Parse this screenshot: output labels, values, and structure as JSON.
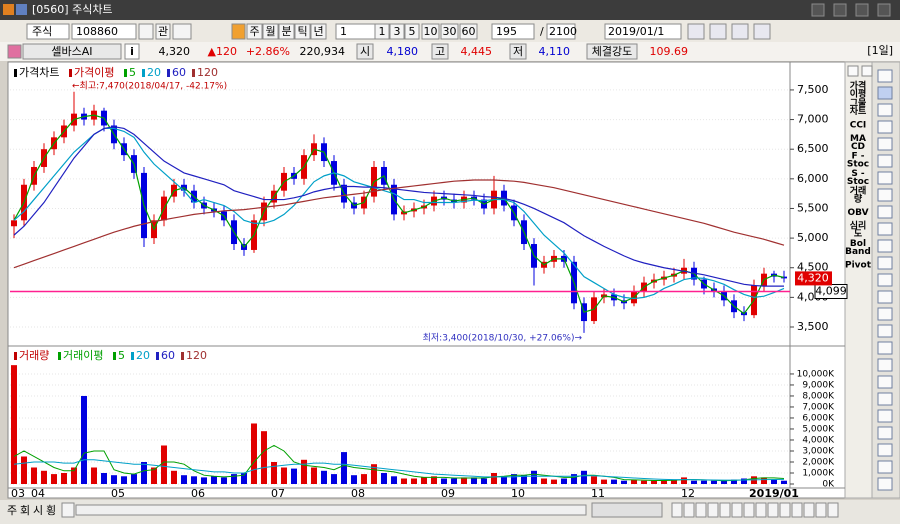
{
  "window": {
    "title": "[0560] 주식차트"
  },
  "toolbar": {
    "market": "주식",
    "code": "108860",
    "watch": "관",
    "periods": [
      "주",
      "월",
      "분",
      "틱",
      "년"
    ],
    "interval": "1",
    "minutes": [
      "1",
      "3",
      "5",
      "10",
      "30",
      "60"
    ],
    "count": "195",
    "slash": "/",
    "total": "2100",
    "date": "2019/01/1"
  },
  "quote": {
    "name": "셀바스AI",
    "info": "i",
    "price": "4,320",
    "change": "▲120",
    "rate": "+2.86%",
    "volume": "220,934",
    "open_label": "시",
    "open": "4,180",
    "high_label": "고",
    "high": "4,445",
    "low_label": "저",
    "low": "4,110",
    "strength_label": "체결강도",
    "strength": "109.69",
    "period": "[1일]"
  },
  "sidebar": [
    [
      "가격",
      "이평"
    ],
    [
      "그물",
      "차트"
    ],
    [
      "CCI"
    ],
    [
      "MA",
      "CD"
    ],
    [
      "F -",
      "Stoc"
    ],
    [
      "S -",
      "Stoc"
    ],
    [
      "거래",
      "량"
    ],
    [
      "OBV"
    ],
    [
      "심리",
      "도"
    ],
    [
      "Bol",
      "Band"
    ],
    [
      "Pivot"
    ]
  ],
  "tabs": [
    "주",
    "회",
    "시",
    "횡"
  ],
  "chart_data": [
    {
      "type": "candlestick",
      "title": "가격차트",
      "ma_label": "가격이평",
      "up_color": "#e00000",
      "down_color": "#0000e0",
      "grid": true,
      "open": [
        5200,
        5300,
        5900,
        6200,
        6500,
        6700,
        6900,
        7100,
        7000,
        7150,
        6900,
        6600,
        6400,
        6100,
        5000,
        5300,
        5700,
        5900,
        5800,
        5600,
        5500,
        5450,
        5300,
        4900,
        4800,
        5300,
        5600,
        5800,
        6100,
        6000,
        6400,
        6600,
        6300,
        5900,
        5600,
        5500,
        5700,
        6200,
        5900,
        5400,
        5450,
        5500,
        5550,
        5700,
        5650,
        5600,
        5700,
        5650,
        5500,
        5800,
        5550,
        5300,
        4900,
        4500,
        4600,
        4700,
        4600,
        3900,
        3600,
        4000,
        4050,
        3950,
        3900,
        4100,
        4250,
        4300,
        4350,
        4400,
        4500,
        4300,
        4150,
        4100,
        3950,
        3750,
        3700,
        4200,
        4400,
        4350
      ],
      "high": [
        5400,
        6000,
        6300,
        6600,
        6800,
        7000,
        7470,
        7200,
        7250,
        7200,
        7000,
        6700,
        6500,
        6200,
        5400,
        5800,
        6000,
        6000,
        5900,
        5700,
        5600,
        5550,
        5400,
        5000,
        5400,
        5700,
        5900,
        6200,
        6200,
        6500,
        6750,
        6700,
        6400,
        6000,
        5700,
        5800,
        6300,
        6300,
        6000,
        5550,
        5600,
        5650,
        5800,
        5800,
        5750,
        5800,
        5800,
        5750,
        6050,
        5900,
        5650,
        5400,
        5000,
        4700,
        4800,
        4800,
        4700,
        4000,
        4100,
        4150,
        4150,
        4050,
        4200,
        4350,
        4400,
        4450,
        4500,
        4650,
        4600,
        4350,
        4250,
        4200,
        4050,
        3850,
        4300,
        4500,
        4450,
        4450
      ],
      "low": [
        5000,
        5200,
        5800,
        6100,
        6400,
        6600,
        6800,
        6900,
        6900,
        6800,
        6500,
        6300,
        6000,
        4850,
        4900,
        5200,
        5600,
        5700,
        5500,
        5400,
        5350,
        5200,
        4800,
        4700,
        4750,
        5200,
        5500,
        5700,
        5900,
        5900,
        6300,
        6200,
        5800,
        5500,
        5400,
        5400,
        5600,
        5800,
        5300,
        5300,
        5350,
        5400,
        5450,
        5550,
        5500,
        5500,
        5550,
        5400,
        5400,
        5450,
        5200,
        4800,
        4200,
        4400,
        4500,
        4500,
        3800,
        3400,
        3550,
        3900,
        3850,
        3800,
        3850,
        4000,
        4150,
        4200,
        4250,
        4300,
        4200,
        4050,
        4000,
        3850,
        3650,
        3600,
        3650,
        4100,
        4250,
        4250
      ],
      "close": [
        5300,
        5900,
        6200,
        6500,
        6700,
        6900,
        7100,
        7000,
        7150,
        6900,
        6600,
        6400,
        6100,
        5000,
        5300,
        5700,
        5900,
        5800,
        5600,
        5500,
        5450,
        5300,
        4900,
        4800,
        5300,
        5600,
        5800,
        6100,
        6000,
        6400,
        6600,
        6300,
        5900,
        5600,
        5500,
        5700,
        6200,
        5900,
        5400,
        5450,
        5500,
        5550,
        5700,
        5650,
        5600,
        5700,
        5650,
        5500,
        5800,
        5550,
        5300,
        4900,
        4500,
        4600,
        4700,
        4600,
        3900,
        3600,
        4000,
        4050,
        3950,
        3900,
        4100,
        4250,
        4300,
        4350,
        4400,
        4500,
        4300,
        4150,
        4100,
        3950,
        3750,
        3700,
        4200,
        4400,
        4350,
        4320
      ],
      "series": [
        {
          "name": "5",
          "color": "#00a000",
          "values": [
            5300,
            5600,
            6050,
            6350,
            6600,
            6800,
            7000,
            7050,
            7075,
            7025,
            6750,
            6500,
            6250,
            5550,
            5150,
            5500,
            5800,
            5850,
            5700,
            5550,
            5475,
            5375,
            5100,
            4850,
            5050,
            5450,
            5700,
            5950,
            6050,
            6200,
            6500,
            6450,
            6100,
            5750,
            5550,
            5600,
            5950,
            6050,
            5650,
            5425,
            5475,
            5525,
            5625,
            5675,
            5625,
            5650,
            5675,
            5575,
            5650,
            5675,
            5425,
            5100,
            4700,
            4550,
            4650,
            4650,
            4250,
            3750,
            3800,
            4025,
            4000,
            3925,
            4000,
            4175,
            4275,
            4325,
            4375,
            4450,
            4400,
            4225,
            4125,
            4025,
            3850,
            3725,
            3950,
            4300,
            4375,
            4335
          ]
        },
        {
          "name": "20",
          "color": "#00a0c8",
          "values": [
            5300,
            5450,
            5650,
            5850,
            6050,
            6250,
            6450,
            6600,
            6750,
            6850,
            6850,
            6800,
            6700,
            6450,
            6250,
            6100,
            5950,
            5800,
            5600,
            5650,
            5600,
            5550,
            5450,
            5300,
            5250,
            5250,
            5300,
            5400,
            5550,
            5750,
            5950,
            6050,
            6100,
            6050,
            5950,
            5900,
            5850,
            5800,
            5750,
            5650,
            5650,
            5600,
            5600,
            5600,
            5600,
            5620,
            5640,
            5630,
            5650,
            5650,
            5600,
            5450,
            5250,
            5050,
            4900,
            4750,
            4550,
            4350,
            4250,
            4150,
            4050,
            4000,
            3980,
            4000,
            4050,
            4150,
            4220,
            4300,
            4330,
            4320,
            4280,
            4220,
            4130,
            4050,
            4000,
            4020,
            4080,
            4150
          ]
        },
        {
          "name": "60",
          "color": "#2020c0",
          "values": [
            5050,
            5200,
            5400,
            5600,
            5850,
            6100,
            6350,
            6550,
            6750,
            6850,
            6880,
            6850,
            6750,
            6600,
            6450,
            6300,
            6200,
            6100,
            6050,
            6000,
            5950,
            5900,
            5800,
            5750,
            5700,
            5650,
            5650,
            5650,
            5680,
            5720,
            5780,
            5820,
            5850,
            5870,
            5870,
            5860,
            5860,
            5850,
            5830,
            5810,
            5790,
            5770,
            5760,
            5750,
            5740,
            5730,
            5720,
            5700,
            5690,
            5670,
            5630,
            5570,
            5500,
            5420,
            5340,
            5260,
            5150,
            5040,
            4950,
            4860,
            4780,
            4700,
            4630,
            4580,
            4540,
            4500,
            4470,
            4440,
            4410,
            4380,
            4340,
            4300,
            4260,
            4220,
            4200,
            4190,
            4190,
            4190
          ]
        },
        {
          "name": "120",
          "color": "#a03030",
          "values": [
            4500,
            4560,
            4620,
            4680,
            4740,
            4800,
            4860,
            4920,
            4980,
            5040,
            5100,
            5150,
            5200,
            5240,
            5280,
            5310,
            5340,
            5370,
            5400,
            5420,
            5440,
            5460,
            5470,
            5480,
            5500,
            5520,
            5540,
            5560,
            5590,
            5620,
            5650,
            5680,
            5700,
            5720,
            5740,
            5760,
            5790,
            5820,
            5840,
            5860,
            5880,
            5900,
            5920,
            5940,
            5960,
            5970,
            5980,
            5980,
            5980,
            5970,
            5960,
            5940,
            5910,
            5880,
            5850,
            5810,
            5770,
            5730,
            5690,
            5650,
            5610,
            5570,
            5530,
            5490,
            5450,
            5410,
            5370,
            5330,
            5290,
            5250,
            5200,
            5150,
            5100,
            5060,
            5020,
            4980,
            4930,
            4880
          ]
        }
      ],
      "ylim": [
        3230,
        7870
      ],
      "yticks": [
        {
          "value": 3500,
          "label": "3,500"
        },
        {
          "value": 4000,
          "label": "4,000"
        },
        {
          "value": 4500,
          "label": "4,500"
        },
        {
          "value": 5000,
          "label": "5,000"
        },
        {
          "value": 5500,
          "label": "5,500"
        },
        {
          "value": 6000,
          "label": "6,000"
        },
        {
          "value": 6500,
          "label": "6,500"
        },
        {
          "value": 7000,
          "label": "7,000"
        },
        {
          "value": 7500,
          "label": "7,500"
        }
      ],
      "annotations": {
        "high": "←최고:7,470(2018/04/17, -42.17%)",
        "low": "최저:3,400(2018/10/30, +27.06%)→"
      },
      "last_label": "4,320",
      "ref_line": {
        "value": 4099,
        "label": "4,099",
        "color": "#ff2090"
      }
    },
    {
      "type": "bar",
      "title": "거래량",
      "ma_label": "거래이평",
      "color": "#e00000",
      "grid": true,
      "categories": [
        "03",
        null,
        "04",
        null,
        null,
        null,
        null,
        null,
        null,
        null,
        "05",
        null,
        null,
        null,
        null,
        null,
        null,
        null,
        "06",
        null,
        null,
        null,
        null,
        null,
        null,
        null,
        "07",
        null,
        null,
        null,
        null,
        null,
        null,
        null,
        "08",
        null,
        null,
        null,
        null,
        null,
        null,
        null,
        null,
        "09",
        null,
        null,
        null,
        null,
        null,
        null,
        "10",
        null,
        null,
        null,
        null,
        null,
        null,
        null,
        "11",
        null,
        null,
        null,
        null,
        null,
        null,
        null,
        null,
        "12",
        null,
        null,
        null,
        null,
        null,
        null,
        null,
        null,
        "2019/01",
        null
      ],
      "values": [
        10800,
        2500,
        1500,
        1200,
        900,
        1000,
        1500,
        8000,
        1500,
        1000,
        800,
        700,
        900,
        2000,
        1500,
        3500,
        1200,
        800,
        700,
        600,
        700,
        600,
        900,
        1000,
        5500,
        4800,
        2000,
        1500,
        1400,
        2200,
        1500,
        1200,
        900,
        2900,
        800,
        900,
        1800,
        1000,
        700,
        500,
        500,
        600,
        700,
        500,
        500,
        600,
        600,
        500,
        1000,
        700,
        900,
        800,
        1200,
        500,
        400,
        500,
        900,
        1200,
        700,
        400,
        400,
        300,
        400,
        300,
        300,
        300,
        400,
        600,
        300,
        300,
        300,
        300,
        400,
        500,
        700,
        600,
        400,
        300
      ],
      "series": [
        {
          "name": "5",
          "color": "#00a000",
          "values": [
            2500,
            3000,
            2500,
            2000,
            1500,
            1200,
            1200,
            2800,
            3000,
            3000,
            1300,
            1000,
            900,
            1200,
            1300,
            2000,
            2000,
            1800,
            1200,
            800,
            700,
            650,
            700,
            800,
            2000,
            3000,
            3500,
            3000,
            2000,
            1700,
            1600,
            1500,
            1300,
            1700,
            1500,
            1400,
            1300,
            1200,
            1100,
            900,
            700,
            600,
            600,
            600,
            550,
            550,
            550,
            550,
            650,
            700,
            800,
            800,
            900,
            800,
            700,
            600,
            600,
            800,
            800,
            700,
            600,
            400,
            380,
            350,
            320,
            320,
            340,
            400,
            400,
            380,
            340,
            300,
            330,
            380,
            500,
            560,
            560,
            500
          ]
        },
        {
          "name": "20",
          "color": "#00a0c8",
          "values": [
            1800,
            1900,
            2000,
            2000,
            2000,
            1900,
            1900,
            2200,
            2200,
            2100,
            2000,
            1900,
            1800,
            1800,
            1700,
            1600,
            1500,
            1400,
            1300,
            1200,
            1100,
            1100,
            1000,
            1000,
            1300,
            1500,
            1600,
            1700,
            1800,
            1800,
            1900,
            1900,
            1800,
            1800,
            1700,
            1600,
            1500,
            1400,
            1300,
            1200,
            1100,
            1000,
            900,
            850,
            800,
            750,
            700,
            650,
            650,
            650,
            650,
            700,
            700,
            700,
            700,
            700,
            700,
            750,
            750,
            700,
            650,
            600,
            550,
            500,
            450,
            420,
            400,
            400,
            400,
            380,
            360,
            350,
            350,
            360,
            380,
            400,
            410,
            420
          ]
        }
      ],
      "legend_only": [
        {
          "name": "60",
          "color": "#2020c0"
        },
        {
          "name": "120",
          "color": "#a03030"
        }
      ],
      "ylim": [
        0,
        11450
      ],
      "yticks": [
        {
          "value": 0,
          "label": "0K"
        },
        {
          "value": 1000,
          "label": "1,000K"
        },
        {
          "value": 2000,
          "label": "2,000K"
        },
        {
          "value": 3000,
          "label": "3,000K"
        },
        {
          "value": 4000,
          "label": "4,000K"
        },
        {
          "value": 5000,
          "label": "5,000K"
        },
        {
          "value": 6000,
          "label": "6,000K"
        },
        {
          "value": 7000,
          "label": "7,000K"
        },
        {
          "value": 8000,
          "label": "8,000K"
        },
        {
          "value": 9000,
          "label": "9,000K"
        },
        {
          "value": 10000,
          "label": "10,000K"
        }
      ]
    }
  ]
}
